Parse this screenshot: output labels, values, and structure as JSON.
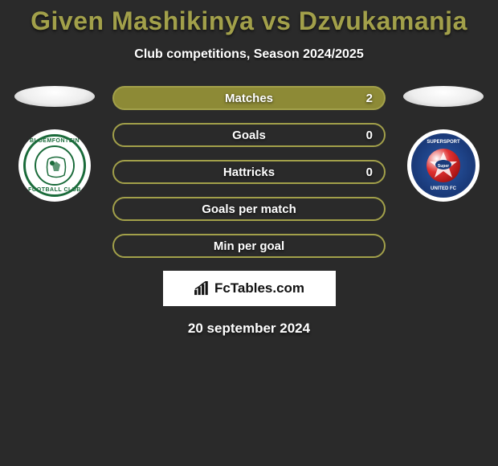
{
  "title": "Given Mashikinya vs Dzvukamanja",
  "subtitle": "Club competitions, Season 2024/2025",
  "stats": [
    {
      "label": "Matches",
      "value": "2",
      "fill_pct": 100,
      "bar_color": "#8d8a36",
      "border_color": "#a2a04a"
    },
    {
      "label": "Goals",
      "value": "0",
      "fill_pct": 0,
      "bar_color": "#2a2a2a",
      "border_color": "#a2a04a"
    },
    {
      "label": "Hattricks",
      "value": "0",
      "fill_pct": 0,
      "bar_color": "#2a2a2a",
      "border_color": "#a2a04a"
    },
    {
      "label": "Goals per match",
      "value": "",
      "fill_pct": 0,
      "bar_color": "#2a2a2a",
      "border_color": "#a2a04a"
    },
    {
      "label": "Min per goal",
      "value": "",
      "fill_pct": 0,
      "bar_color": "#2a2a2a",
      "border_color": "#a2a04a"
    }
  ],
  "logo_text": "FcTables.com",
  "date": "20 september 2024",
  "colors": {
    "background": "#2a2a2a",
    "accent": "#a2a04a",
    "text": "#ffffff"
  },
  "left_badge": {
    "name": "bloemfontein-celtic-badge",
    "primary": "#1a6b3a"
  },
  "right_badge": {
    "name": "supersport-united-badge",
    "primary": "#1a3a7a"
  }
}
